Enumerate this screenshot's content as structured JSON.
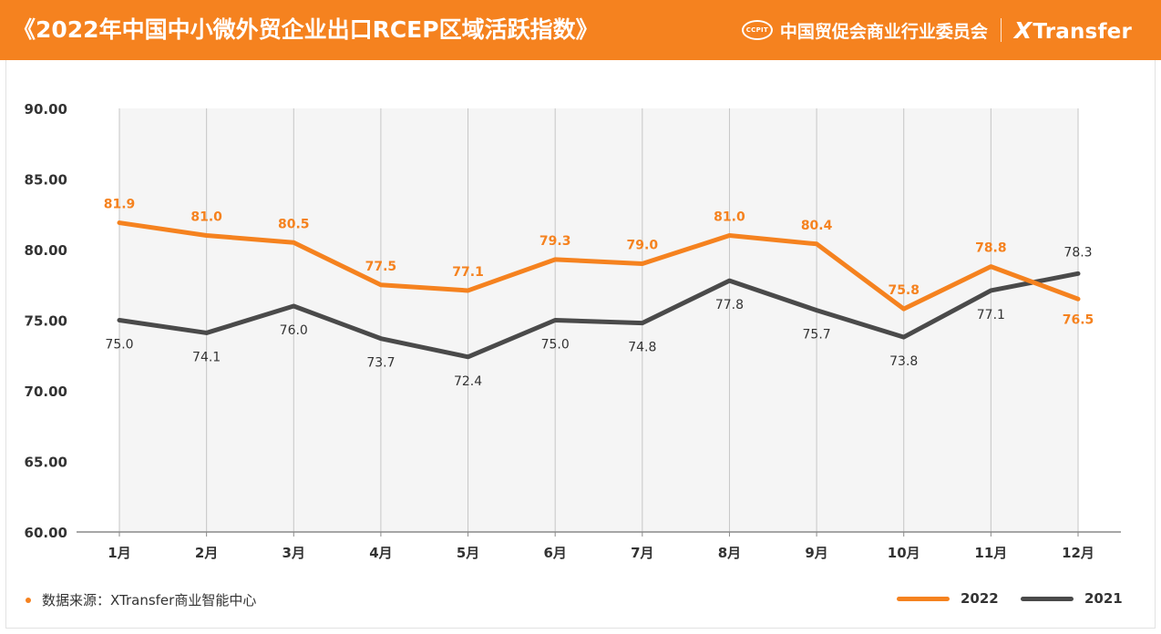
{
  "header": {
    "title": "《2022年中国中小微外贸企业出口RCEP区域活跃指数》",
    "seal_text": "CCPIT",
    "org_name": "中国贸促会商业行业委员会",
    "logo_x": "X",
    "logo_rest": "Transfer"
  },
  "footer": {
    "source": "数据来源：XTransfer商业智能中心"
  },
  "colors": {
    "series_2022": "#f5821f",
    "series_2021": "#4a4a4a",
    "plot_bg": "#f5f5f5",
    "header_bg": "#f5821f"
  },
  "chart_data": {
    "type": "line",
    "categories": [
      "1月",
      "2月",
      "3月",
      "4月",
      "5月",
      "6月",
      "7月",
      "8月",
      "9月",
      "10月",
      "11月",
      "12月"
    ],
    "ylim": [
      60,
      90
    ],
    "yticks": [
      "60.00",
      "65.00",
      "70.00",
      "75.00",
      "80.00",
      "85.00",
      "90.00"
    ],
    "grid": "vertical",
    "legend_position": "bottom-right",
    "series": [
      {
        "name": "2022",
        "values": [
          81.9,
          81.0,
          80.5,
          77.5,
          77.1,
          79.3,
          79.0,
          81.0,
          80.4,
          75.8,
          78.8,
          76.5
        ],
        "labels": [
          "81.9",
          "81.0",
          "80.5",
          "77.5",
          "77.1",
          "79.3",
          "79.0",
          "81.0",
          "80.4",
          "75.8",
          "78.8",
          "76.5"
        ]
      },
      {
        "name": "2021",
        "values": [
          75.0,
          74.1,
          76.0,
          73.7,
          72.4,
          75.0,
          74.8,
          77.8,
          75.7,
          73.8,
          77.1,
          78.3
        ],
        "labels": [
          "75.0",
          "74.1",
          "76.0",
          "73.7",
          "72.4",
          "75.0",
          "74.8",
          "77.8",
          "75.7",
          "73.8",
          "77.1",
          "78.3"
        ]
      }
    ]
  }
}
